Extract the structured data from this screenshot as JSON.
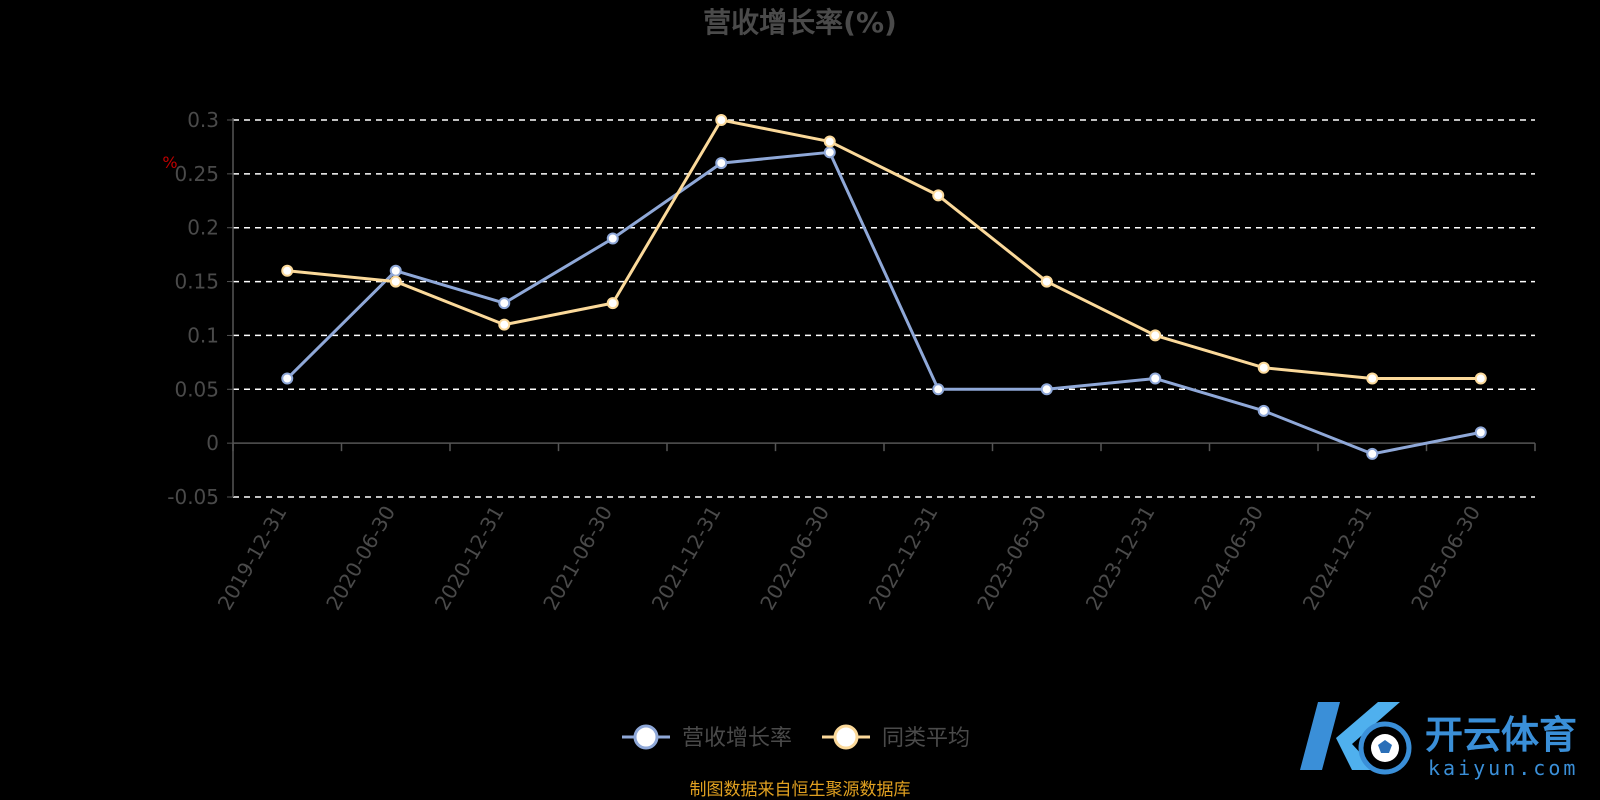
{
  "chart_data": {
    "type": "line",
    "title": "营收增长率(%)",
    "unit_mark": "%",
    "categories": [
      "2019-12-31",
      "2020-06-30",
      "2020-12-31",
      "2021-06-30",
      "2021-12-31",
      "2022-06-30",
      "2022-12-31",
      "2023-06-30",
      "2023-12-31",
      "2024-06-30",
      "2024-12-31",
      "2025-06-30"
    ],
    "series": [
      {
        "name": "营收增长率",
        "color": "#8fa8d8",
        "values": [
          0.06,
          0.16,
          0.13,
          0.19,
          0.26,
          0.27,
          0.05,
          0.05,
          0.06,
          0.03,
          -0.01,
          0.01
        ]
      },
      {
        "name": "同类平均",
        "color": "#fbd99a",
        "values": [
          0.16,
          0.15,
          0.11,
          0.13,
          0.3,
          0.28,
          0.23,
          0.15,
          0.1,
          0.07,
          0.06,
          0.06
        ]
      }
    ],
    "y_ticks": [
      "0.3",
      "0.25",
      "0.2",
      "0.15",
      "0.1",
      "0.05",
      "0",
      "-0.05"
    ],
    "ylim": [
      -0.05,
      0.3
    ],
    "grid": "dashed horizontal",
    "legend": "bottom-center"
  },
  "source_note": "制图数据来自恒生聚源数据库",
  "watermark": {
    "brand": "开云体育",
    "domain": "kaiyun.com"
  }
}
